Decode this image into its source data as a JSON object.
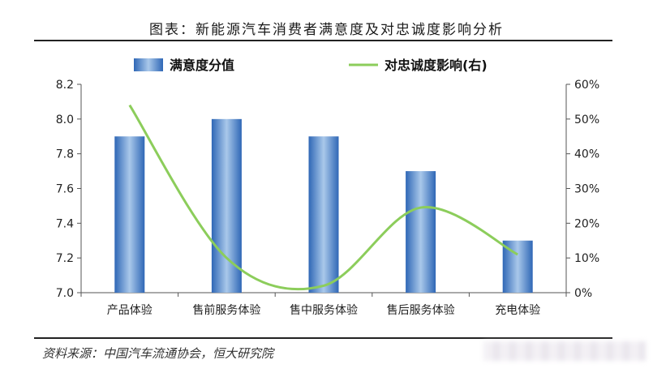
{
  "header": {
    "title": "图表：新能源汽车消费者满意度及对忠诚度影响分析"
  },
  "footer": {
    "source": "资料来源：中国汽车流通协会，恒大研究院"
  },
  "chart_data": {
    "type": "bar",
    "categories": [
      "产品体验",
      "售前服务体验",
      "售中服务体验",
      "售后服务体验",
      "充电体验"
    ],
    "series": [
      {
        "name": "满意度分值",
        "type": "bar",
        "axis": "left",
        "values": [
          7.9,
          8.0,
          7.9,
          7.7,
          7.3
        ],
        "color": "#3f7cc4"
      },
      {
        "name": "对忠诚度影响(右)",
        "type": "line",
        "axis": "right",
        "values": [
          54,
          10,
          2,
          24.5,
          11
        ],
        "color": "#8ccd5b"
      }
    ],
    "y_left": {
      "ylim": [
        7.0,
        8.2
      ],
      "ticks": [
        "7.0",
        "7.2",
        "7.4",
        "7.6",
        "7.8",
        "8.0",
        "8.2"
      ]
    },
    "y_right": {
      "ylim": [
        0,
        60
      ],
      "ticks": [
        "0%",
        "10%",
        "20%",
        "30%",
        "40%",
        "50%",
        "60%"
      ]
    },
    "legend": {
      "placement": "top"
    },
    "grid": false
  }
}
